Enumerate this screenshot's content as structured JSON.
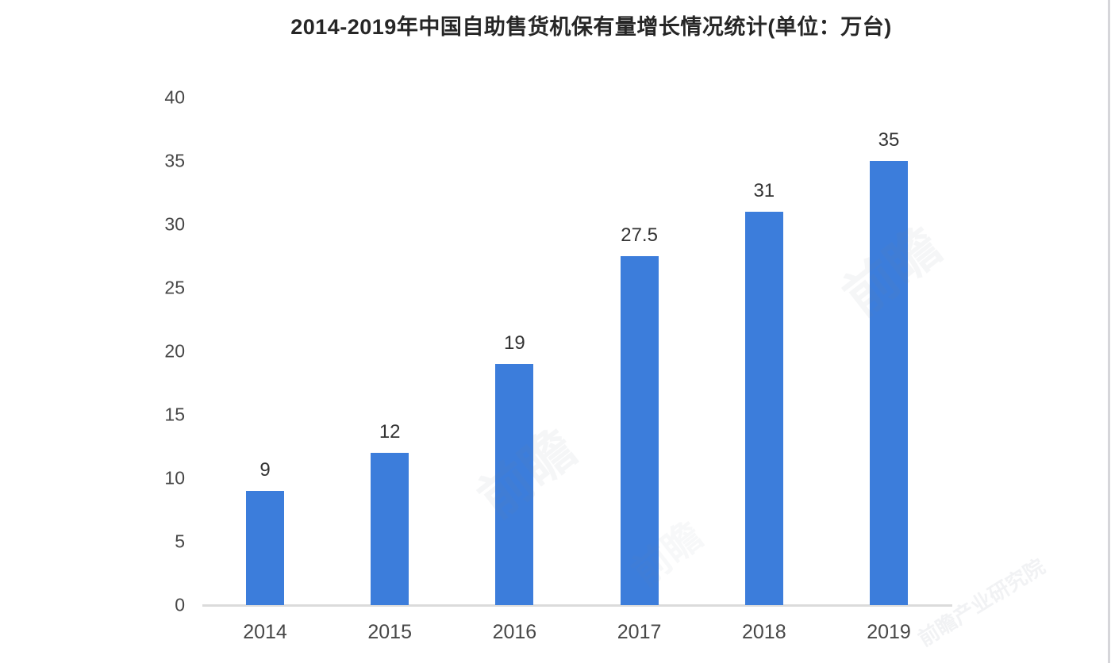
{
  "chart_data": {
    "type": "bar",
    "title": "2014-2019年中国自助售货机保有量增长情况统计(单位：万台)",
    "categories": [
      "2014",
      "2015",
      "2016",
      "2017",
      "2018",
      "2019"
    ],
    "values": [
      9,
      12,
      19,
      27.5,
      31,
      35
    ],
    "bar_labels": [
      "9",
      "12",
      "19",
      "27.5",
      "31",
      "35"
    ],
    "yticks": [
      0,
      5,
      10,
      15,
      20,
      25,
      30,
      35,
      40
    ],
    "ylim": [
      0,
      40
    ],
    "xlabel": "",
    "ylabel": "",
    "grid": false,
    "legend": "none",
    "bar_color": "#3c7ddb",
    "axis_line_color": "#dbdbdb",
    "title_color": "#262626",
    "tick_label_color": "#474747",
    "value_label_color": "#333333"
  },
  "decorations": {
    "right_border_color": "#d6d6da",
    "watermark_color": "#7d8697",
    "watermarks": [
      {
        "text": "前瞻"
      },
      {
        "text": "前瞻"
      },
      {
        "text": "前瞻"
      },
      {
        "text": "前瞻产业研究院"
      }
    ]
  }
}
